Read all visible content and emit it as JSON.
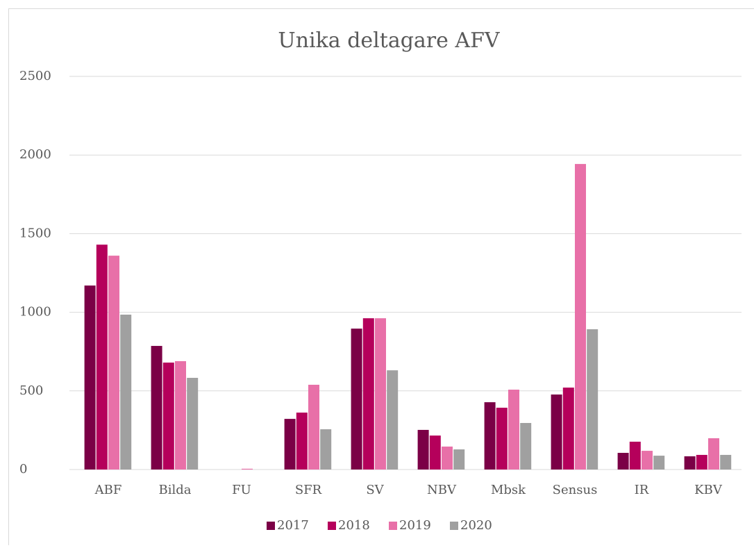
{
  "chart_data": {
    "type": "bar",
    "title": "Unika deltagare AFV",
    "categories": [
      "ABF",
      "Bilda",
      "FU",
      "SFR",
      "SV",
      "NBV",
      "Mbsk",
      "Sensus",
      "IR",
      "KBV"
    ],
    "series": [
      {
        "name": "2017",
        "color": "#7b0046",
        "values": [
          1170,
          786,
          0,
          322,
          896,
          252,
          428,
          477,
          106,
          84
        ]
      },
      {
        "name": "2018",
        "color": "#b5005b",
        "values": [
          1430,
          680,
          0,
          362,
          962,
          216,
          393,
          521,
          177,
          93
        ]
      },
      {
        "name": "2019",
        "color": "#e870a8",
        "values": [
          1360,
          689,
          5,
          539,
          962,
          146,
          508,
          1943,
          119,
          199
        ]
      },
      {
        "name": "2020",
        "color": "#a0a0a0",
        "values": [
          985,
          583,
          0,
          256,
          631,
          128,
          296,
          892,
          88,
          93
        ]
      }
    ],
    "ylim": [
      0,
      2500
    ],
    "yticks": [
      0,
      500,
      1000,
      1500,
      2000,
      2500
    ],
    "grid": true,
    "legend": "bottom"
  }
}
